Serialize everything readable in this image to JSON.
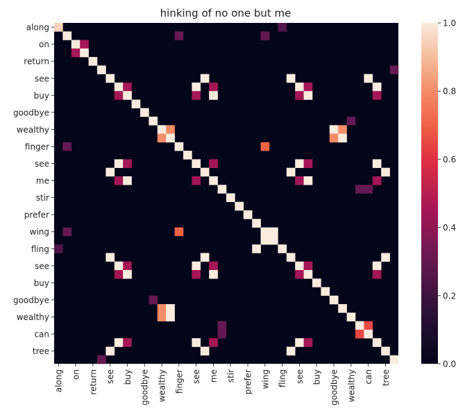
{
  "chart_data": {
    "type": "heatmap",
    "title": "hinking of no one but me",
    "tokens": [
      "along",
      "along",
      "on",
      "on",
      "return",
      "return",
      "see",
      "see",
      "buy",
      "buy",
      "goodbye",
      "goodbye",
      "wealthy",
      "wealthy",
      "finger",
      "finger",
      "see",
      "see",
      "me",
      "me",
      "stir",
      "stir",
      "prefer",
      "prefer",
      "wing",
      "wing",
      "fling",
      "fling",
      "see",
      "see",
      "buy",
      "buy",
      "goodbye",
      "goodbye",
      "wealthy",
      "wealthy",
      "can",
      "can",
      "tree",
      "tree"
    ],
    "row_tick_labels": [
      "along",
      "on",
      "return",
      "see",
      "buy",
      "goodbye",
      "wealthy",
      "finger",
      "see",
      "me",
      "stir",
      "prefer",
      "wing",
      "fling",
      "see",
      "buy",
      "goodbye",
      "wealthy",
      "can",
      "tree"
    ],
    "col_tick_labels": [
      "along",
      "on",
      "return",
      "see",
      "buy",
      "goodbye",
      "wealthy",
      "finger",
      "see",
      "me",
      "stir",
      "prefer",
      "wing",
      "fling",
      "see",
      "buy",
      "goodbye",
      "wealthy",
      "can",
      "tree"
    ],
    "colorbar": {
      "min": 0.0,
      "max": 1.0,
      "ticks": [
        "0.0",
        "0.2",
        "0.4",
        "0.6",
        "0.8",
        "1.0"
      ]
    },
    "default_value": 0.0,
    "cells": [
      [
        0,
        0,
        0.95
      ],
      [
        0,
        26,
        0.25
      ],
      [
        1,
        1,
        1.0
      ],
      [
        1,
        14,
        0.3
      ],
      [
        1,
        24,
        0.3
      ],
      [
        2,
        2,
        1.0
      ],
      [
        2,
        3,
        0.45
      ],
      [
        3,
        2,
        0.45
      ],
      [
        3,
        3,
        1.0
      ],
      [
        4,
        4,
        1.0
      ],
      [
        5,
        5,
        1.0
      ],
      [
        5,
        39,
        0.3
      ],
      [
        6,
        6,
        1.0
      ],
      [
        6,
        17,
        1.0
      ],
      [
        6,
        27,
        1.0
      ],
      [
        6,
        36,
        1.0
      ],
      [
        7,
        7,
        1.0
      ],
      [
        7,
        8,
        0.45
      ],
      [
        7,
        16,
        1.0
      ],
      [
        7,
        18,
        0.45
      ],
      [
        7,
        28,
        1.0
      ],
      [
        7,
        29,
        0.45
      ],
      [
        7,
        37,
        1.0
      ],
      [
        8,
        7,
        0.45
      ],
      [
        8,
        8,
        1.0
      ],
      [
        8,
        16,
        0.45
      ],
      [
        8,
        18,
        1.0
      ],
      [
        8,
        28,
        0.45
      ],
      [
        8,
        29,
        1.0
      ],
      [
        8,
        37,
        0.45
      ],
      [
        9,
        9,
        1.0
      ],
      [
        10,
        10,
        1.0
      ],
      [
        11,
        11,
        1.0
      ],
      [
        11,
        34,
        0.3
      ],
      [
        12,
        12,
        1.0
      ],
      [
        12,
        13,
        0.8
      ],
      [
        12,
        32,
        1.0
      ],
      [
        12,
        33,
        0.8
      ],
      [
        13,
        12,
        0.8
      ],
      [
        13,
        13,
        1.0
      ],
      [
        13,
        32,
        0.8
      ],
      [
        13,
        33,
        1.0
      ],
      [
        14,
        1,
        0.3
      ],
      [
        14,
        14,
        1.0
      ],
      [
        14,
        24,
        0.7
      ],
      [
        15,
        15,
        1.0
      ],
      [
        16,
        7,
        1.0
      ],
      [
        16,
        8,
        0.45
      ],
      [
        16,
        16,
        1.0
      ],
      [
        16,
        18,
        0.45
      ],
      [
        16,
        28,
        1.0
      ],
      [
        16,
        29,
        0.45
      ],
      [
        16,
        37,
        1.0
      ],
      [
        17,
        6,
        1.0
      ],
      [
        17,
        17,
        1.0
      ],
      [
        17,
        27,
        1.0
      ],
      [
        17,
        38,
        1.0
      ],
      [
        18,
        7,
        0.45
      ],
      [
        18,
        8,
        1.0
      ],
      [
        18,
        16,
        0.45
      ],
      [
        18,
        18,
        1.0
      ],
      [
        18,
        28,
        0.45
      ],
      [
        18,
        29,
        1.0
      ],
      [
        18,
        37,
        0.45
      ],
      [
        19,
        19,
        1.0
      ],
      [
        19,
        35,
        0.3
      ],
      [
        19,
        36,
        0.3
      ],
      [
        20,
        20,
        1.0
      ],
      [
        21,
        21,
        1.0
      ],
      [
        22,
        22,
        1.0
      ],
      [
        23,
        23,
        1.0
      ],
      [
        24,
        1,
        0.3
      ],
      [
        24,
        14,
        0.7
      ],
      [
        24,
        24,
        1.0
      ],
      [
        24,
        25,
        1.0
      ],
      [
        25,
        24,
        1.0
      ],
      [
        25,
        25,
        1.0
      ],
      [
        26,
        0,
        0.25
      ],
      [
        26,
        23,
        1.0
      ],
      [
        26,
        26,
        1.0
      ],
      [
        27,
        6,
        1.0
      ],
      [
        27,
        17,
        1.0
      ],
      [
        27,
        27,
        1.0
      ],
      [
        27,
        38,
        1.0
      ],
      [
        28,
        7,
        1.0
      ],
      [
        28,
        8,
        0.45
      ],
      [
        28,
        16,
        1.0
      ],
      [
        28,
        18,
        0.45
      ],
      [
        28,
        28,
        1.0
      ],
      [
        28,
        29,
        0.45
      ],
      [
        28,
        37,
        1.0
      ],
      [
        29,
        7,
        0.45
      ],
      [
        29,
        8,
        1.0
      ],
      [
        29,
        16,
        0.45
      ],
      [
        29,
        18,
        1.0
      ],
      [
        29,
        28,
        0.45
      ],
      [
        29,
        29,
        1.0
      ],
      [
        29,
        37,
        0.45
      ],
      [
        30,
        30,
        1.0
      ],
      [
        31,
        31,
        1.0
      ],
      [
        32,
        11,
        0.3
      ],
      [
        32,
        32,
        1.0
      ],
      [
        33,
        12,
        0.8
      ],
      [
        33,
        13,
        1.0
      ],
      [
        33,
        33,
        1.0
      ],
      [
        34,
        12,
        0.8
      ],
      [
        34,
        13,
        1.0
      ],
      [
        34,
        34,
        1.0
      ],
      [
        35,
        19,
        0.3
      ],
      [
        35,
        35,
        1.0
      ],
      [
        35,
        36,
        0.65
      ],
      [
        36,
        19,
        0.3
      ],
      [
        36,
        35,
        0.65
      ],
      [
        36,
        36,
        1.0
      ],
      [
        37,
        7,
        1.0
      ],
      [
        37,
        8,
        0.45
      ],
      [
        37,
        16,
        1.0
      ],
      [
        37,
        18,
        0.45
      ],
      [
        37,
        28,
        1.0
      ],
      [
        37,
        29,
        0.45
      ],
      [
        37,
        37,
        1.0
      ],
      [
        38,
        6,
        1.0
      ],
      [
        38,
        17,
        1.0
      ],
      [
        38,
        27,
        1.0
      ],
      [
        38,
        38,
        1.0
      ],
      [
        39,
        5,
        0.3
      ],
      [
        39,
        39,
        1.0
      ]
    ]
  }
}
